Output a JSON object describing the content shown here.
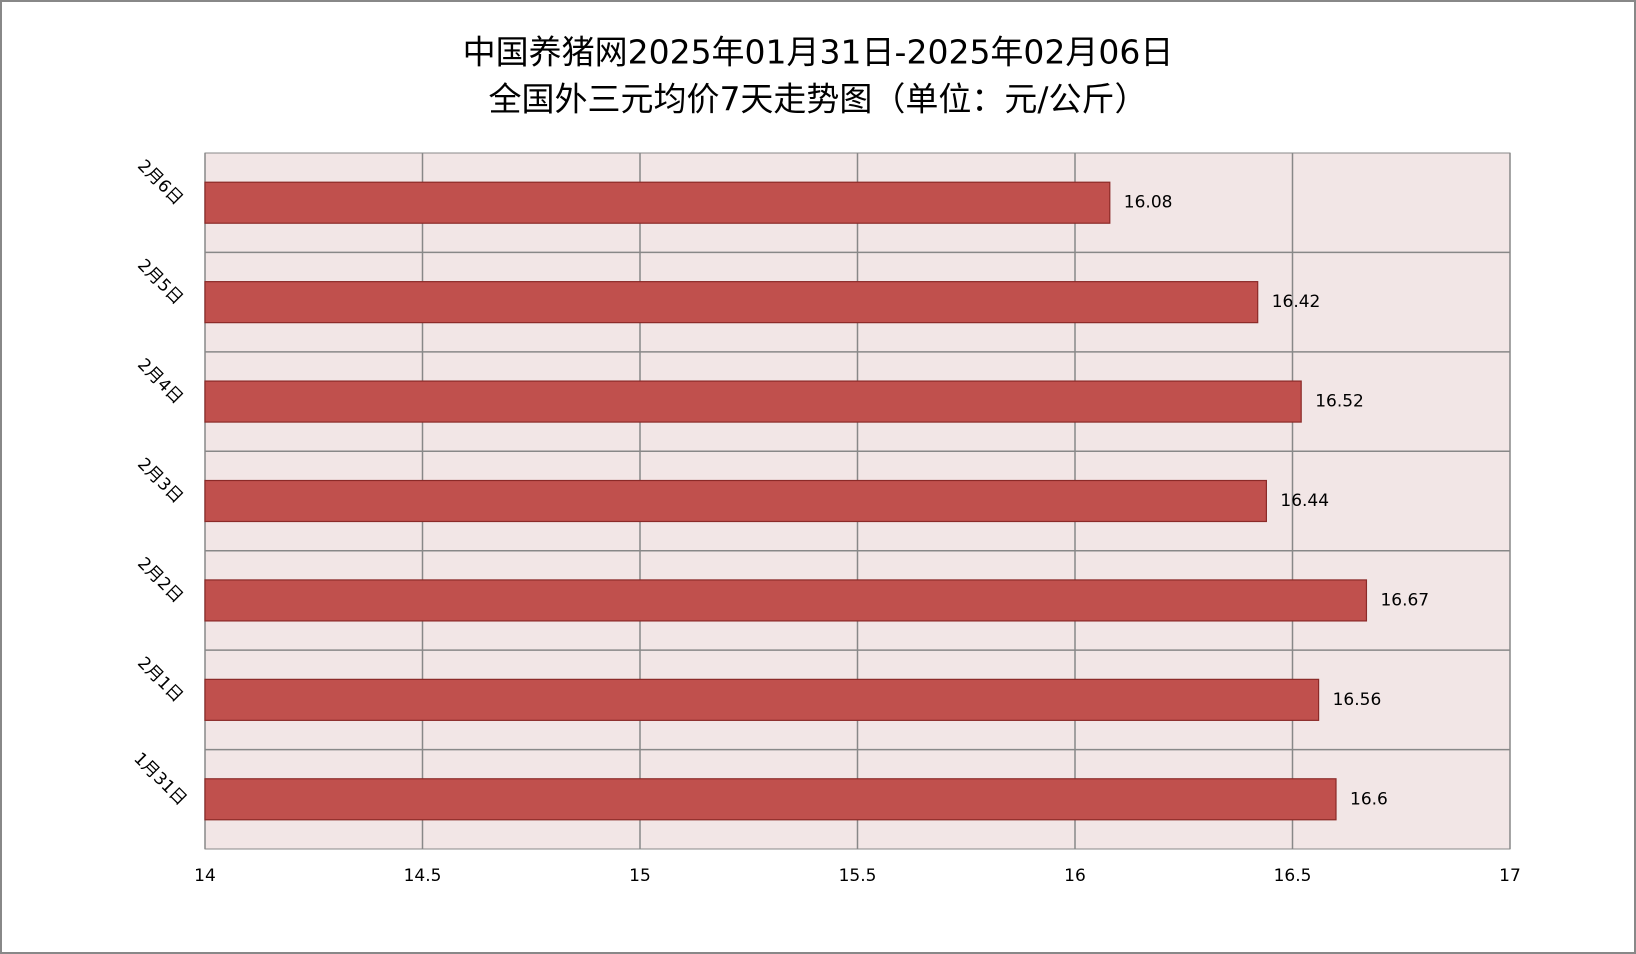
{
  "chart_data": {
    "type": "bar",
    "orientation": "horizontal",
    "title": "中国养猪网2025年01月31日-2025年02月06日",
    "subtitle": "全国外三元均价7天走势图（单位：元/公斤）",
    "categories": [
      "1月31日",
      "2月1日",
      "2月2日",
      "2月3日",
      "2月4日",
      "2月5日",
      "2月6日"
    ],
    "values": [
      16.6,
      16.56,
      16.67,
      16.44,
      16.52,
      16.42,
      16.08
    ],
    "color": "#c0504d",
    "xlim": [
      14,
      17
    ],
    "xticks": [
      14,
      14.5,
      15,
      15.5,
      16,
      16.5,
      17
    ],
    "grid": true
  }
}
